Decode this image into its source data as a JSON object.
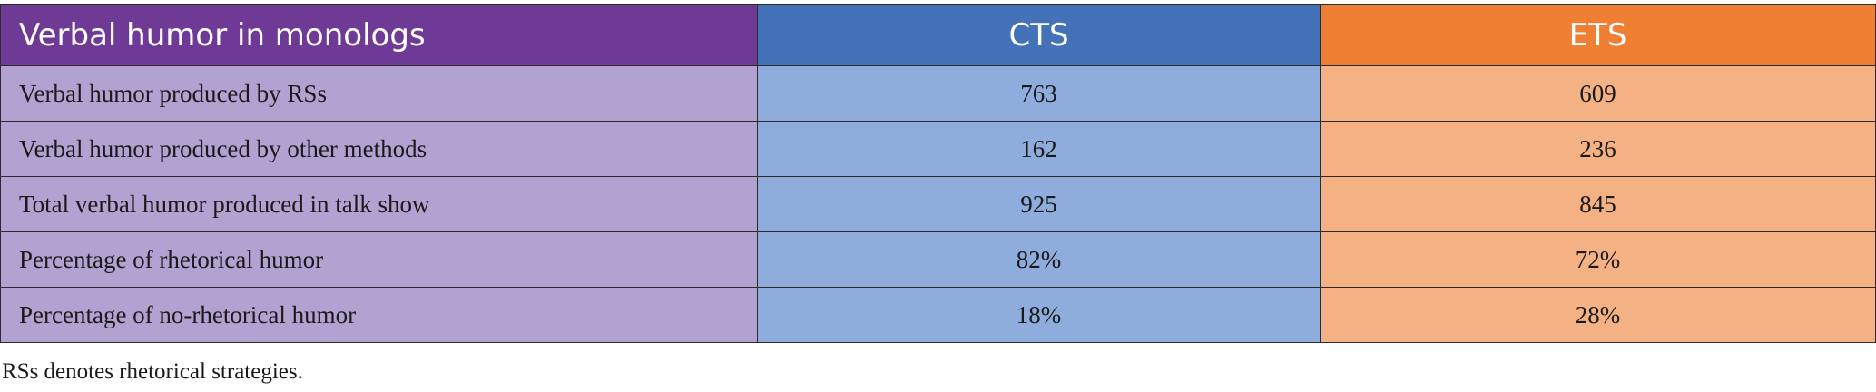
{
  "table": {
    "headers": [
      "Verbal humor in monologs",
      "CTS",
      "ETS"
    ],
    "rows": [
      {
        "label": "Verbal humor produced by RSs",
        "cts": "763",
        "ets": "609"
      },
      {
        "label": "Verbal humor produced by other methods",
        "cts": "162",
        "ets": "236"
      },
      {
        "label": "Total verbal humor produced in talk show",
        "cts": "925",
        "ets": "845"
      },
      {
        "label": "Percentage of rhetorical humor",
        "cts": "82%",
        "ets": "72%"
      },
      {
        "label": "Percentage of no-rhetorical humor",
        "cts": "18%",
        "ets": "28%"
      }
    ],
    "colors": {
      "header_label": "#6f3996",
      "header_cts": "#4472b9",
      "header_ets": "#ee7f33",
      "cell_label": "#b1a2d1",
      "cell_cts": "#8eacdc",
      "cell_ets": "#f4b184"
    }
  },
  "footnote": "RSs denotes rhetorical strategies."
}
